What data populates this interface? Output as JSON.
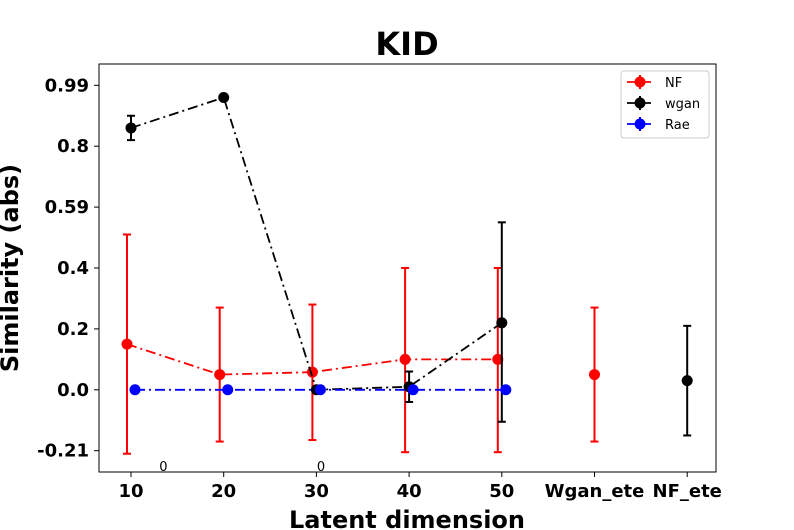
{
  "chart_data": {
    "type": "line",
    "title": "KID",
    "xlabel": "Latent dimension",
    "ylabel": "Similarity (abs)",
    "categories": [
      "10",
      "20",
      "30",
      "40",
      "50",
      "Wgan_ete",
      "NF_ete"
    ],
    "yticks": [
      "0.99",
      "0.8",
      "0.59",
      "0.4",
      "0.2",
      "0.0",
      "-0.21"
    ],
    "ytick_values": [
      1.0,
      0.8,
      0.6,
      0.4,
      0.2,
      0.0,
      -0.2
    ],
    "ylim": [
      -0.27,
      1.07
    ],
    "grid": false,
    "legend_position": "top-right",
    "annotations": [
      {
        "text": "0",
        "x_index": 0.35
      },
      {
        "text": "0",
        "x_index": 2.05
      }
    ],
    "series": [
      {
        "name": "NF",
        "color": "#ff0000",
        "linestyle": "dashdot",
        "points": [
          {
            "i": 0,
            "y": 0.15,
            "err_low": -0.21,
            "err_high": 0.51
          },
          {
            "i": 1,
            "y": 0.05,
            "err_low": -0.17,
            "err_high": 0.27
          },
          {
            "i": 2,
            "y": 0.058,
            "err_low": -0.165,
            "err_high": 0.28
          },
          {
            "i": 3,
            "y": 0.1,
            "err_low": -0.205,
            "err_high": 0.4
          },
          {
            "i": 4,
            "y": 0.1,
            "err_low": -0.205,
            "err_high": 0.4
          }
        ],
        "extra_points": [
          {
            "i": 5,
            "y": 0.05,
            "err_low": -0.17,
            "err_high": 0.27
          }
        ]
      },
      {
        "name": "wgan",
        "color": "#000000",
        "linestyle": "dashdot",
        "points": [
          {
            "i": 0,
            "y": 0.86,
            "err_low": 0.82,
            "err_high": 0.9
          },
          {
            "i": 1,
            "y": 0.96,
            "err_low": null,
            "err_high": null
          },
          {
            "i": 2,
            "y": 0.0,
            "err_low": null,
            "err_high": null
          },
          {
            "i": 3,
            "y": 0.01,
            "err_low": -0.04,
            "err_high": 0.06
          },
          {
            "i": 4,
            "y": 0.22,
            "err_low": -0.105,
            "err_high": 0.55
          }
        ],
        "extra_points": [
          {
            "i": 6,
            "y": 0.03,
            "err_low": -0.15,
            "err_high": 0.21
          }
        ]
      },
      {
        "name": "Rae",
        "color": "#0000ff",
        "linestyle": "dashdot",
        "points": [
          {
            "i": 0,
            "y": 0.0,
            "err_low": null,
            "err_high": null
          },
          {
            "i": 1,
            "y": 0.0,
            "err_low": null,
            "err_high": null
          },
          {
            "i": 2,
            "y": 0.0,
            "err_low": null,
            "err_high": null
          },
          {
            "i": 3,
            "y": 0.0,
            "err_low": null,
            "err_high": null
          },
          {
            "i": 4,
            "y": 0.0,
            "err_low": null,
            "err_high": null
          }
        ],
        "extra_points": []
      }
    ]
  }
}
